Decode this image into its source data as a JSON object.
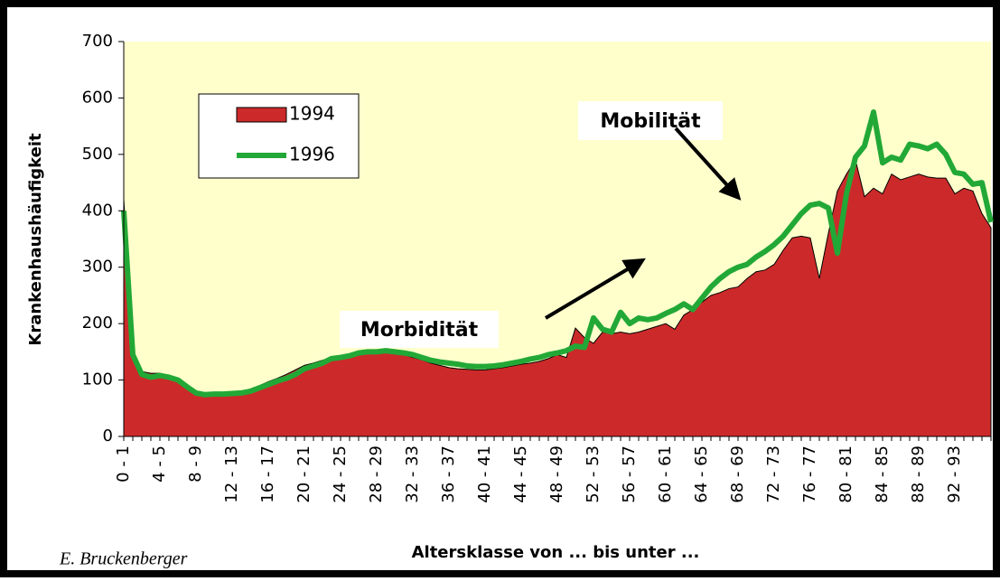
{
  "chart_data": {
    "type": "area_line",
    "xlabel": "Altersklasse von ... bis unter ...",
    "ylabel": "Krankenhaushäufigkeit",
    "credit": "E. Bruckenberger",
    "annotations": [
      "Mobilität",
      "Morbidität"
    ],
    "ylim": [
      0,
      700
    ],
    "yticks": [
      0,
      100,
      200,
      300,
      400,
      500,
      600,
      700
    ],
    "categories": [
      "0 - 1",
      null,
      null,
      null,
      "4 - 5",
      null,
      null,
      null,
      "8 - 9",
      null,
      null,
      null,
      "12 - 13",
      null,
      null,
      null,
      "16 - 17",
      null,
      null,
      null,
      "20 - 21",
      null,
      null,
      null,
      "24 - 25",
      null,
      null,
      null,
      "28 - 29",
      null,
      null,
      null,
      "32 - 33",
      null,
      null,
      null,
      "36 - 37",
      null,
      null,
      null,
      "40 - 41",
      null,
      null,
      null,
      "44 - 45",
      null,
      null,
      null,
      "48 - 49",
      null,
      null,
      null,
      "52 - 53",
      null,
      null,
      null,
      "56 - 57",
      null,
      null,
      null,
      "60 - 61",
      null,
      null,
      null,
      "64 - 65",
      null,
      null,
      null,
      "68 - 69",
      null,
      null,
      null,
      "72 - 73",
      null,
      null,
      null,
      "76 - 77",
      null,
      null,
      null,
      "80 - 81",
      null,
      null,
      null,
      "84 - 85",
      null,
      null,
      null,
      "88 - 89",
      null,
      null,
      null,
      "92 - 93",
      null,
      null,
      null,
      null
    ],
    "series": [
      {
        "name": "1994",
        "color": "#cc2a2a",
        "style": "area",
        "values": [
          420,
          150,
          115,
          112,
          112,
          108,
          100,
          90,
          80,
          76,
          75,
          76,
          78,
          80,
          84,
          90,
          97,
          103,
          110,
          118,
          126,
          130,
          135,
          140,
          143,
          146,
          150,
          152,
          152,
          150,
          148,
          145,
          140,
          136,
          130,
          126,
          122,
          120,
          119,
          118,
          118,
          120,
          122,
          125,
          128,
          130,
          133,
          138,
          145,
          140,
          192,
          175,
          165,
          185,
          182,
          185,
          182,
          185,
          190,
          195,
          200,
          190,
          215,
          225,
          238,
          250,
          255,
          262,
          265,
          280,
          292,
          295,
          305,
          330,
          352,
          355,
          352,
          280,
          360,
          435,
          465,
          490,
          425,
          440,
          430,
          465,
          455,
          460,
          465,
          460,
          458,
          458,
          430,
          440,
          435,
          395,
          370
        ]
      },
      {
        "name": "1996",
        "color": "#22a836",
        "style": "line",
        "values": [
          400,
          145,
          110,
          105,
          108,
          105,
          100,
          88,
          77,
          74,
          75,
          75,
          76,
          77,
          80,
          86,
          92,
          98,
          103,
          110,
          120,
          125,
          130,
          138,
          140,
          143,
          148,
          150,
          150,
          152,
          150,
          148,
          145,
          140,
          135,
          132,
          130,
          128,
          125,
          124,
          124,
          125,
          127,
          130,
          133,
          137,
          140,
          145,
          148,
          152,
          160,
          158,
          210,
          190,
          185,
          220,
          200,
          210,
          207,
          210,
          218,
          225,
          235,
          225,
          245,
          265,
          280,
          292,
          300,
          305,
          318,
          328,
          340,
          355,
          375,
          395,
          410,
          413,
          405,
          325,
          430,
          495,
          515,
          575,
          485,
          495,
          490,
          518,
          515,
          510,
          518,
          500,
          468,
          465,
          447,
          450,
          380
        ]
      }
    ]
  }
}
